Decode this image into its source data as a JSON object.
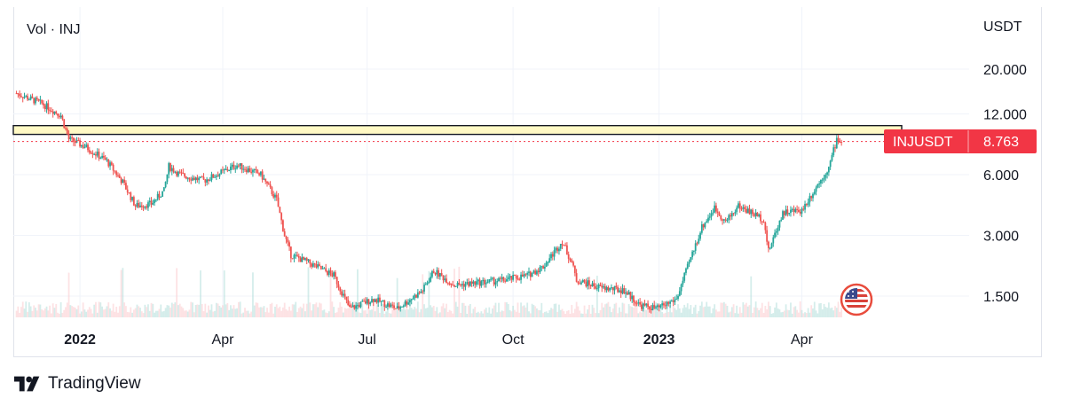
{
  "legend": {
    "text": "Vol · INJ"
  },
  "axis": {
    "currency": "USDT"
  },
  "footer": {
    "brand": "TradingView"
  },
  "price_label": {
    "symbol": "INJUSDT",
    "value": "8.763"
  },
  "icons": {
    "flag": "us-flag-icon",
    "logo": "tradingview-logo-icon"
  },
  "colors": {
    "up": "#26a69a",
    "down": "#ef5350",
    "resistance": "#fff9c4",
    "price_line": "#f23645"
  },
  "chart_data": {
    "type": "candlestick",
    "symbol": "INJUSDT",
    "y_scale": "log",
    "y_ticks": [
      1.5,
      3,
      6,
      12,
      20
    ],
    "y_tick_labels": [
      "1.500",
      "3.000",
      "6.000",
      "12.000",
      "20.000"
    ],
    "x_ticks": [
      "2022-01-01",
      "2022-04-01",
      "2022-07-01",
      "2022-10-01",
      "2023-01-01",
      "2023-04-01"
    ],
    "x_tick_labels": [
      "2022",
      "Apr",
      "Jul",
      "Oct",
      "2023",
      "Apr"
    ],
    "x_range": [
      "2021-11-20",
      "2023-05-25"
    ],
    "last_price": 8.763,
    "resistance_zone": [
      9.5,
      10.5
    ],
    "price_path": [
      [
        "2021-11-22",
        15.2
      ],
      [
        "2021-12-08",
        13.5
      ],
      [
        "2021-12-20",
        11.8
      ],
      [
        "2021-12-25",
        9.0
      ],
      [
        "2022-01-05",
        8.2
      ],
      [
        "2022-01-18",
        7.0
      ],
      [
        "2022-01-28",
        5.5
      ],
      [
        "2022-02-05",
        4.2
      ],
      [
        "2022-02-15",
        4.3
      ],
      [
        "2022-02-23",
        5.0
      ],
      [
        "2022-02-26",
        6.6
      ],
      [
        "2022-03-05",
        6.0
      ],
      [
        "2022-03-20",
        5.6
      ],
      [
        "2022-04-01",
        6.2
      ],
      [
        "2022-04-10",
        6.7
      ],
      [
        "2022-04-25",
        6.0
      ],
      [
        "2022-05-05",
        4.5
      ],
      [
        "2022-05-10",
        3.0
      ],
      [
        "2022-05-14",
        2.4
      ],
      [
        "2022-05-25",
        2.2
      ],
      [
        "2022-06-10",
        1.9
      ],
      [
        "2022-06-20",
        1.3
      ],
      [
        "2022-07-05",
        1.45
      ],
      [
        "2022-07-20",
        1.3
      ],
      [
        "2022-08-05",
        1.6
      ],
      [
        "2022-08-12",
        2.0
      ],
      [
        "2022-08-25",
        1.7
      ],
      [
        "2022-09-10",
        1.75
      ],
      [
        "2022-09-25",
        1.8
      ],
      [
        "2022-10-10",
        1.9
      ],
      [
        "2022-10-20",
        2.1
      ],
      [
        "2022-11-01",
        2.8
      ],
      [
        "2022-11-07",
        2.2
      ],
      [
        "2022-11-10",
        1.8
      ],
      [
        "2022-11-25",
        1.65
      ],
      [
        "2022-12-10",
        1.6
      ],
      [
        "2022-12-20",
        1.35
      ],
      [
        "2022-12-31",
        1.3
      ],
      [
        "2023-01-12",
        1.45
      ],
      [
        "2023-01-20",
        2.2
      ],
      [
        "2023-01-28",
        3.3
      ],
      [
        "2023-02-05",
        4.1
      ],
      [
        "2023-02-12",
        3.5
      ],
      [
        "2023-02-20",
        4.2
      ],
      [
        "2023-02-28",
        3.9
      ],
      [
        "2023-03-08",
        3.6
      ],
      [
        "2023-03-11",
        2.5
      ],
      [
        "2023-03-20",
        3.9
      ],
      [
        "2023-04-01",
        4.0
      ],
      [
        "2023-04-10",
        5.2
      ],
      [
        "2023-04-18",
        6.5
      ],
      [
        "2023-04-23",
        9.0
      ],
      [
        "2023-04-26",
        8.763
      ]
    ]
  }
}
